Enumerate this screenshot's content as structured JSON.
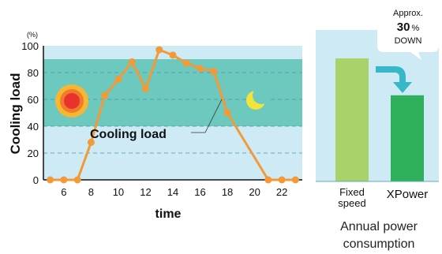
{
  "chart_data": [
    {
      "type": "line",
      "ylabel": "Cooling load",
      "y_unit": "(%)",
      "xlabel": "time",
      "series_label": "Cooling load",
      "ylim": [
        0,
        100
      ],
      "yticks": [
        "0",
        "20",
        "40",
        "60",
        "80",
        "100"
      ],
      "xticks": [
        "6",
        "8",
        "10",
        "12",
        "14",
        "16",
        "18",
        "20",
        "22"
      ],
      "xlim": [
        4.5,
        23.5
      ],
      "highlight_band": [
        40,
        90
      ],
      "grid": "dashed horizontal",
      "colors": {
        "line": "#f29a38",
        "point": "#f29a38",
        "band": "#6dc9bd",
        "background": "#cdeaf5"
      },
      "icons": [
        "sun-icon",
        "moon-icon"
      ],
      "series": [
        {
          "x": [
            5,
            6,
            7,
            8,
            9,
            10,
            11,
            12,
            13,
            14,
            15,
            16,
            17,
            18,
            21,
            22,
            23
          ],
          "y": [
            0,
            0,
            0,
            28,
            63,
            75,
            88,
            68,
            97,
            93,
            87,
            83,
            81,
            50,
            0,
            0,
            0
          ]
        }
      ]
    },
    {
      "type": "bar",
      "categories": [
        "Fixed speed",
        "XPower"
      ],
      "values": [
        100,
        70
      ],
      "colors": [
        "#a8d26a",
        "#2fb15c"
      ],
      "background": "#cdeaf5",
      "caption": [
        "Annual power",
        "consumption"
      ],
      "callout": {
        "line1": "Approx.",
        "value": "30",
        "unit": "%",
        "line3": "DOWN"
      },
      "arrow_color": "#37b7c8"
    }
  ]
}
